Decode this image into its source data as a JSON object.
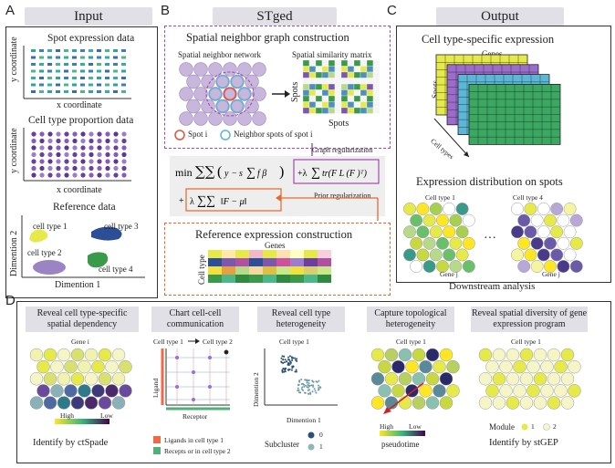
{
  "panels": {
    "a": {
      "letter": "A",
      "title": "Input",
      "spot_title": "Spot expression data",
      "y_coord": "y coordinate",
      "x_coord": "x coordinate",
      "ctp_title": "Cell type proportion data",
      "y_coord2": "y coordinate",
      "x_coord2": "x coordinate",
      "ref_title": "Reference data",
      "ct1": "cell type 1",
      "ct2": "cell type 2",
      "ct3": "cell type 3",
      "ct4": "cell type 4",
      "dim2": "Dimention 2",
      "dim1": "Dimention 1"
    },
    "b": {
      "letter": "B",
      "title": "STged",
      "sng_title": "Spatial neighbor graph construction",
      "sn_label": "Spatial neighbor network",
      "ssm_label": "Spatial similarity matrix",
      "spots_v": "Spots",
      "spots_h": "Spots",
      "legend_spot": "Spot i",
      "legend_neighbor": "Neighbor spots of spot i",
      "graph_reg": "Graph regularization",
      "prior_reg": "Prior regularization",
      "ref_title": "Reference expression construction",
      "genes": "Genes",
      "cell_type": "Cell type"
    },
    "c": {
      "letter": "C",
      "title": "Output",
      "ctse_title": "Cell type-specific expression",
      "genes": "Genes",
      "spots": "Spots",
      "cell_types": "Cell types",
      "ed_title": "Expression distribution on spots",
      "ct1": "Cell type 1",
      "ct4": "Cell type 4",
      "gene_j1": "Gene j",
      "gene_j2": "Gene j",
      "dots": "···",
      "downstream": "Downstream analysis"
    },
    "d": {
      "letter": "D",
      "h1": "Reveal cell type-specific spatial dependency",
      "gene_i": "Gene i",
      "high": "High",
      "low": "Low",
      "identify1": "Identify by ctSpade",
      "h2": "Chart cell-cell communication",
      "ct_pair_a": "Cell type 1",
      "ct_pair_b": "Cell type 2",
      "ligand": "Ligand",
      "receptor": "Receptor",
      "leg_ligand": "Ligands in cell type 1",
      "leg_receptor": "Recepts or in cell type 2",
      "h3": "Reveal cell type heterogeneity",
      "ct1_3": "Cell type 1",
      "dim2": "Dimention 2",
      "dim1": "Dimention 1",
      "subcluster": "Subcluster",
      "sc0": "0",
      "sc1": "1",
      "h4": "Capture topological heterogeneity",
      "ct1_4": "Cell type 1",
      "high4": "High",
      "low4": "Low",
      "pseudotime": "pseudotime",
      "h5": "Reveal spatial diversity of gene expression program",
      "ct1_5": "Cell type 1",
      "module": "Module",
      "m1": "1",
      "m2": "2",
      "identify5": "Identify by stGEP"
    }
  },
  "colors": {
    "purple_dash": "#a24ab0",
    "orange_dash": "#e8672c",
    "header_bg": "#e0e0e6",
    "spot_lavender": "#c8b6dd",
    "spot_center": "#e5533a",
    "neighbor_ring": "#5bb7d6"
  }
}
